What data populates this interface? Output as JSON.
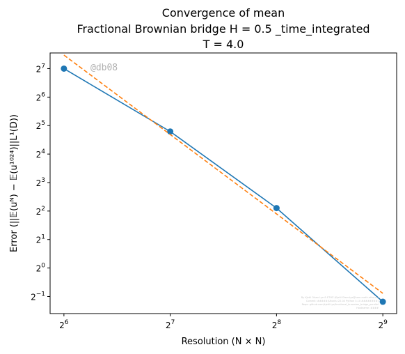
{
  "chart_data": {
    "type": "line",
    "title_lines": [
      "Convergence of mean",
      "Fractional Brownian bridge H = 0.5 _time_integrated",
      "T = 4.0"
    ],
    "xlabel": "Resolution (N × N)",
    "ylabel": "Error (||𝔼(uᴺ) − 𝔼(u¹⁰²⁴)||L¹(D))",
    "x_scale": "log2",
    "y_scale": "log2",
    "xlim_log2": [
      5.87,
      9.13
    ],
    "ylim_log2": [
      -1.6,
      7.55
    ],
    "x_ticks": [
      {
        "base": "2",
        "exp": "6",
        "value": 64
      },
      {
        "base": "2",
        "exp": "7",
        "value": 128
      },
      {
        "base": "2",
        "exp": "8",
        "value": 256
      },
      {
        "base": "2",
        "exp": "9",
        "value": 512
      }
    ],
    "y_ticks": [
      {
        "base": "2",
        "exp": "−1",
        "value": 0.5
      },
      {
        "base": "2",
        "exp": "0",
        "value": 1
      },
      {
        "base": "2",
        "exp": "1",
        "value": 2
      },
      {
        "base": "2",
        "exp": "2",
        "value": 4
      },
      {
        "base": "2",
        "exp": "3",
        "value": 8
      },
      {
        "base": "2",
        "exp": "4",
        "value": 16
      },
      {
        "base": "2",
        "exp": "5",
        "value": 32
      },
      {
        "base": "2",
        "exp": "6",
        "value": 64
      },
      {
        "base": "2",
        "exp": "7",
        "value": 128
      }
    ],
    "series": [
      {
        "style": "solid line with circle markers",
        "color": "#1f77b4",
        "x": [
          64,
          128,
          256,
          512
        ],
        "y": [
          128.0,
          27.7,
          4.3,
          0.44
        ]
      },
      {
        "style": "dashed line",
        "color": "#ff7f0e",
        "x": [
          64,
          512
        ],
        "y": [
          178.0,
          0.54
        ]
      }
    ],
    "grid": false,
    "legend": "none",
    "watermark": "@db08",
    "footnote_lines": [
      "By Kjetil Olsen Lye & ETHZ (Kjetil.OlsenLye@sam.math.ethz.ch)",
      "Commit: #####(Ubuntu 22.04 Python 3.10 ########)",
      "Repo: github.com/kjetil-lye/fractional_brownian_bridge_parallel",
      "Hostname: ####"
    ]
  }
}
